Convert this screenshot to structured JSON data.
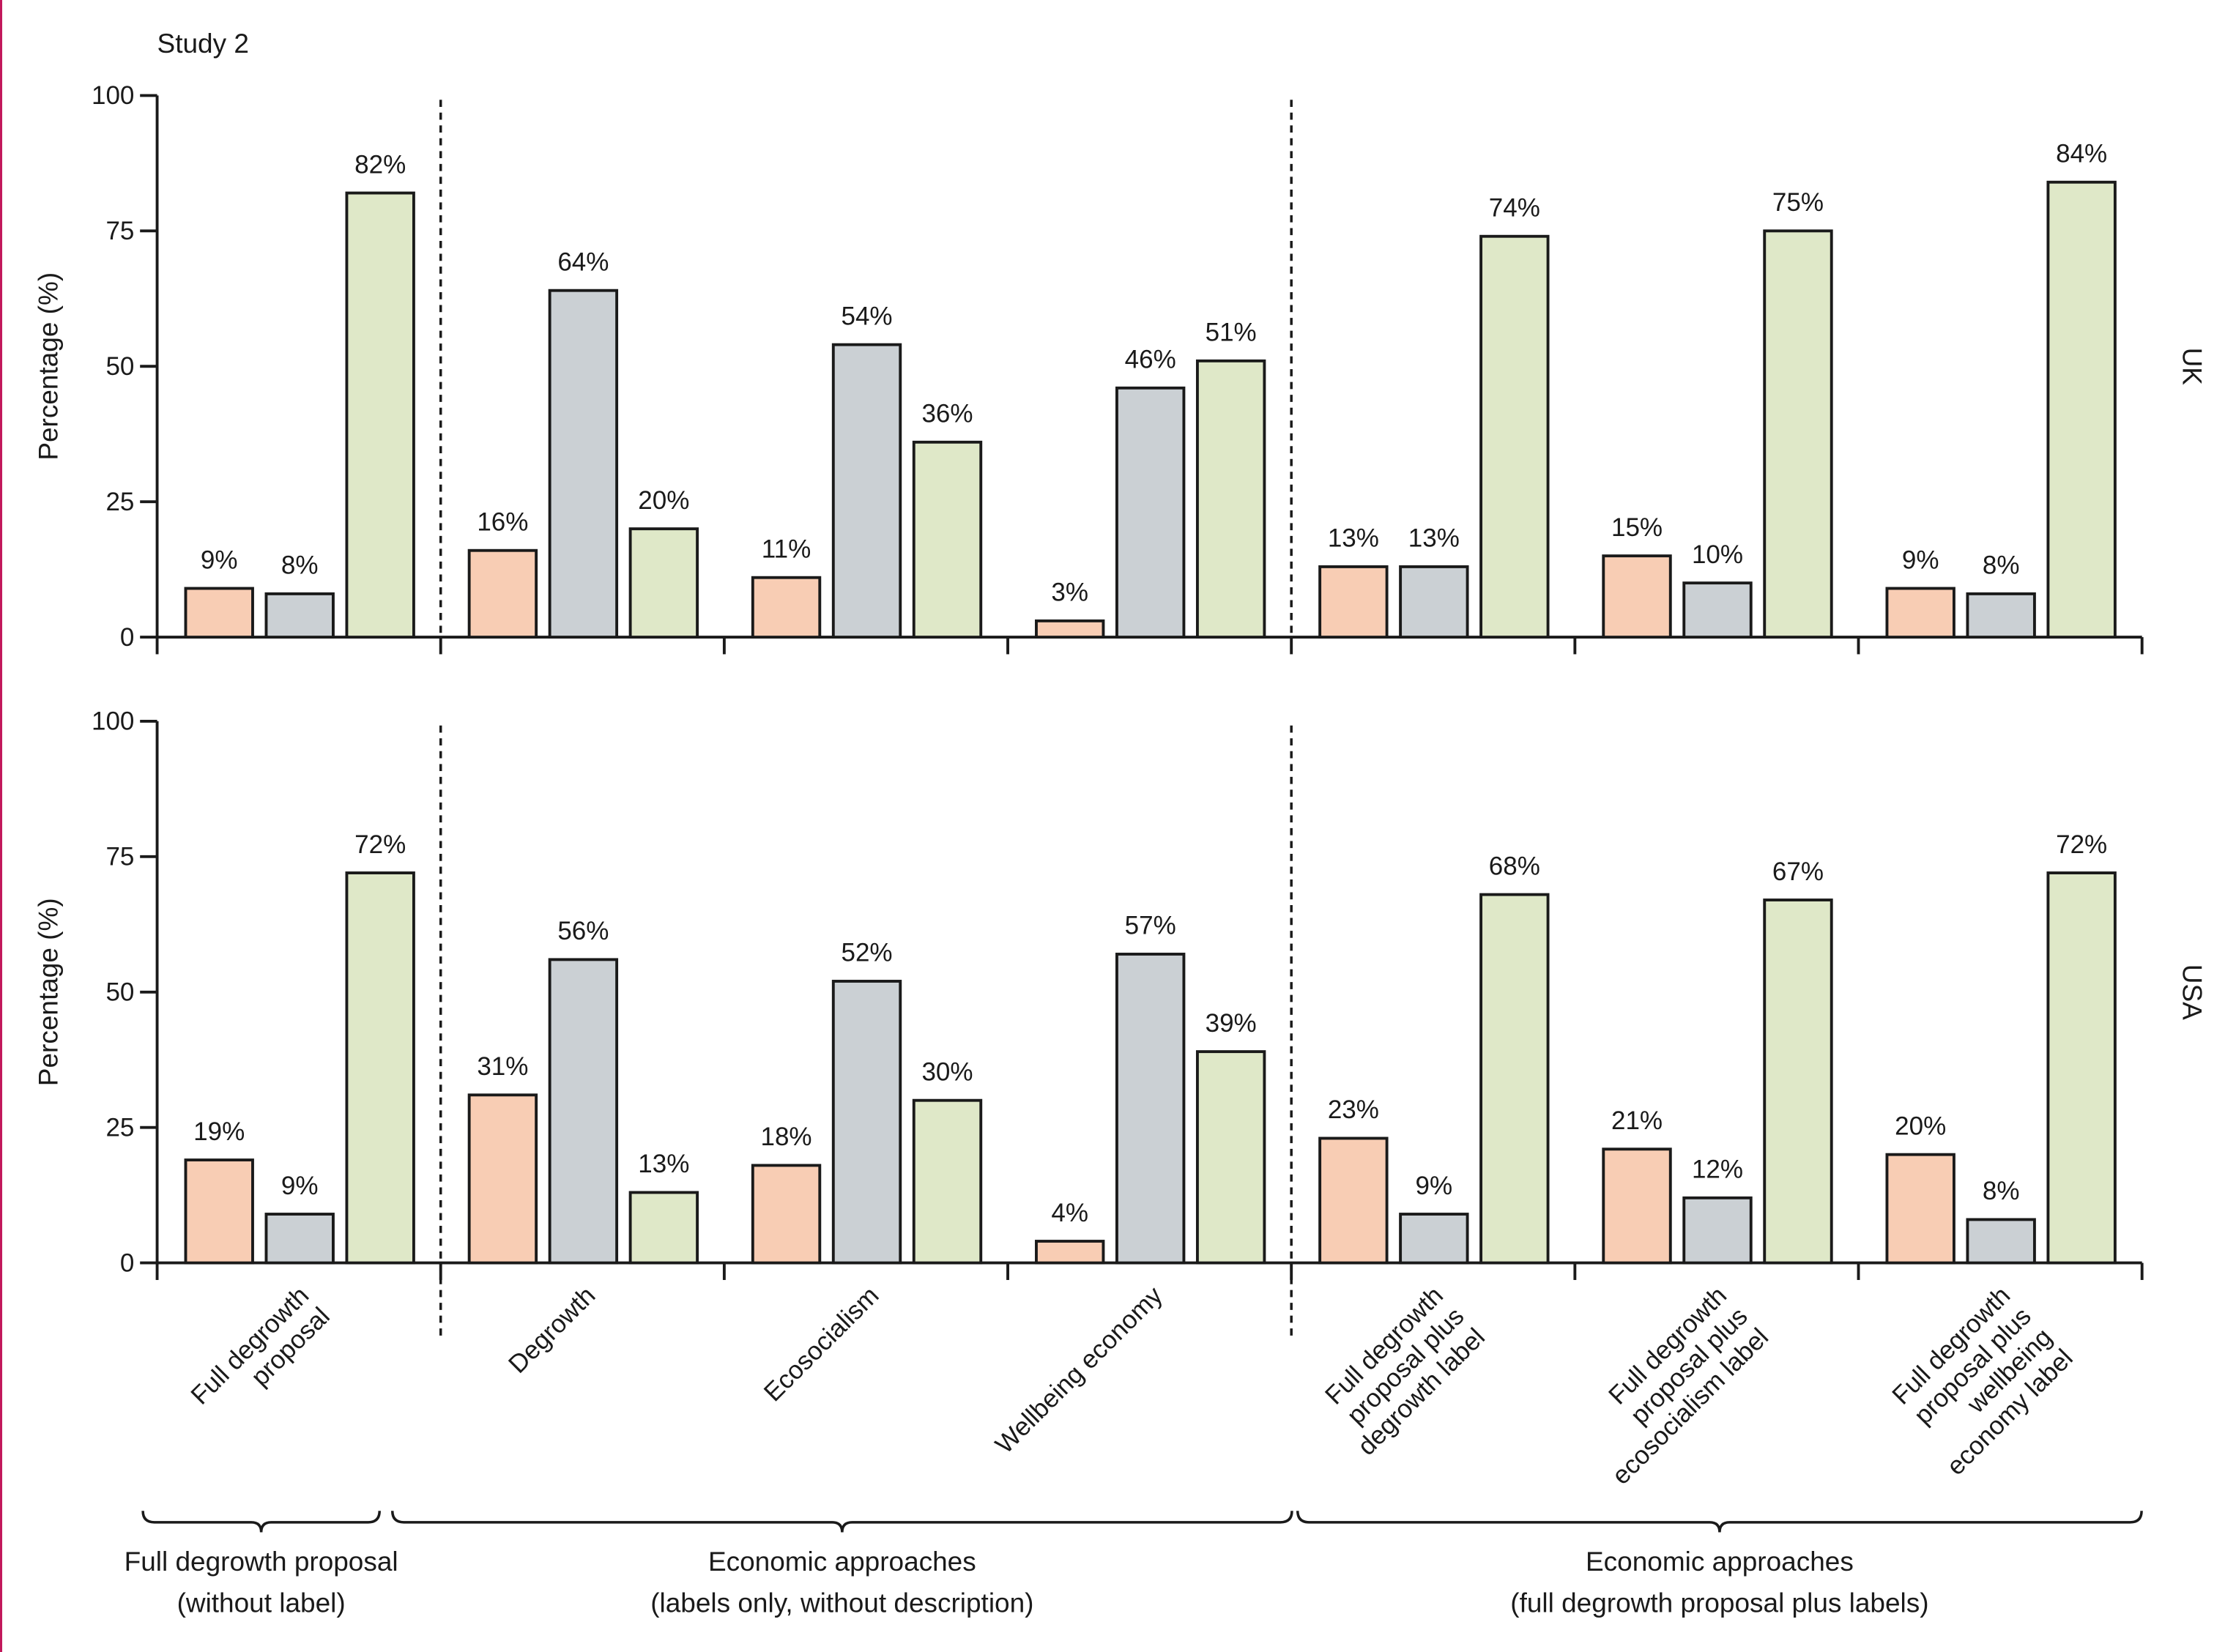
{
  "chart_data": {
    "type": "bar",
    "title": "Study 2",
    "ylabel": "Percentage (%)",
    "ylim": [
      0,
      100
    ],
    "yticks": [
      "0",
      "25",
      "50",
      "75",
      "100"
    ],
    "categories": [
      [
        "Full degrowth",
        "proposal"
      ],
      [
        "Degrowth"
      ],
      [
        "Ecosocialism"
      ],
      [
        "Wellbeing economy"
      ],
      [
        "Full degrowth",
        "proposal plus",
        "degrowth label"
      ],
      [
        "Full degrowth",
        "proposal plus",
        "ecosocialism label"
      ],
      [
        "Full degrowth",
        "proposal plus",
        "wellbeing",
        "economy label"
      ]
    ],
    "series_colors": [
      "#f8cdb4",
      "#cbd0d4",
      "#dfe8c8"
    ],
    "panels": [
      {
        "name": "UK",
        "values": [
          [
            9,
            8,
            82
          ],
          [
            16,
            64,
            20
          ],
          [
            11,
            54,
            36
          ],
          [
            3,
            46,
            51
          ],
          [
            13,
            13,
            74
          ],
          [
            15,
            10,
            75
          ],
          [
            9,
            8,
            84
          ]
        ],
        "labels": [
          [
            "9%",
            "8%",
            "82%"
          ],
          [
            "16%",
            "64%",
            "20%"
          ],
          [
            "11%",
            "54%",
            "36%"
          ],
          [
            "3%",
            "46%",
            "51%"
          ],
          [
            "13%",
            "13%",
            "74%"
          ],
          [
            "15%",
            "10%",
            "75%"
          ],
          [
            "9%",
            "8%",
            "84%"
          ]
        ]
      },
      {
        "name": "USA",
        "values": [
          [
            19,
            9,
            72
          ],
          [
            31,
            56,
            13
          ],
          [
            18,
            52,
            30
          ],
          [
            4,
            57,
            39
          ],
          [
            23,
            9,
            68
          ],
          [
            21,
            12,
            67
          ],
          [
            20,
            8,
            72
          ]
        ],
        "labels": [
          [
            "19%",
            "9%",
            "72%"
          ],
          [
            "31%",
            "56%",
            "13%"
          ],
          [
            "18%",
            "52%",
            "30%"
          ],
          [
            "4%",
            "57%",
            "39%"
          ],
          [
            "23%",
            "9%",
            "68%"
          ],
          [
            "21%",
            "12%",
            "67%"
          ],
          [
            "20%",
            "8%",
            "72%"
          ]
        ]
      }
    ],
    "groups": [
      {
        "line1": "Full degrowth proposal",
        "line2": "(without label)",
        "from": 0,
        "to": 0
      },
      {
        "line1": "Economic approaches",
        "line2": "(labels only, without description)",
        "from": 1,
        "to": 3
      },
      {
        "line1": "Economic approaches",
        "line2": "(full degrowth proposal plus labels)",
        "from": 4,
        "to": 6
      }
    ],
    "grid": false,
    "legend": "none"
  }
}
